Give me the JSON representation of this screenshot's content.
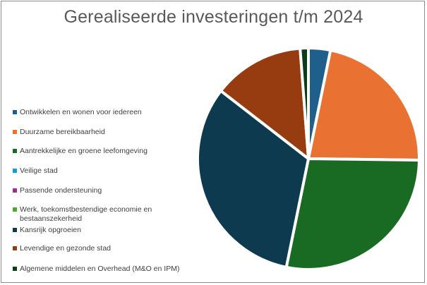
{
  "chart_data": {
    "type": "pie",
    "title": "Gerealiseerde investeringen t/m 2024",
    "series": [
      {
        "name": "Ontwikkelen en wonen voor iedereen",
        "value": 3.2,
        "color": "#1f5f8b"
      },
      {
        "name": "Duurzame bereikbaarheid",
        "value": 22.0,
        "color": "#e97132"
      },
      {
        "name": "Aantrekkelijke en groene leefomgeving",
        "value": 28.0,
        "color": "#196b24"
      },
      {
        "name": "Veilige stad",
        "value": 0.0,
        "color": "#0f9ed5"
      },
      {
        "name": "Passende ondersteuning",
        "value": 0.0,
        "color": "#a02b93"
      },
      {
        "name": "Werk, toekomstbestendige economie en bestaanszekerheid",
        "value": 0.0,
        "color": "#4ea72e"
      },
      {
        "name": "Kansrijk opgroeien",
        "value": 32.3,
        "color": "#0e3a4f"
      },
      {
        "name": "Levendige en gezonde stad",
        "value": 13.3,
        "color": "#963c10"
      },
      {
        "name": "Algemene middelen en Overhead (M&O en IPM)",
        "value": 1.2,
        "color": "#0b3d18"
      }
    ],
    "legend_position": "left"
  }
}
